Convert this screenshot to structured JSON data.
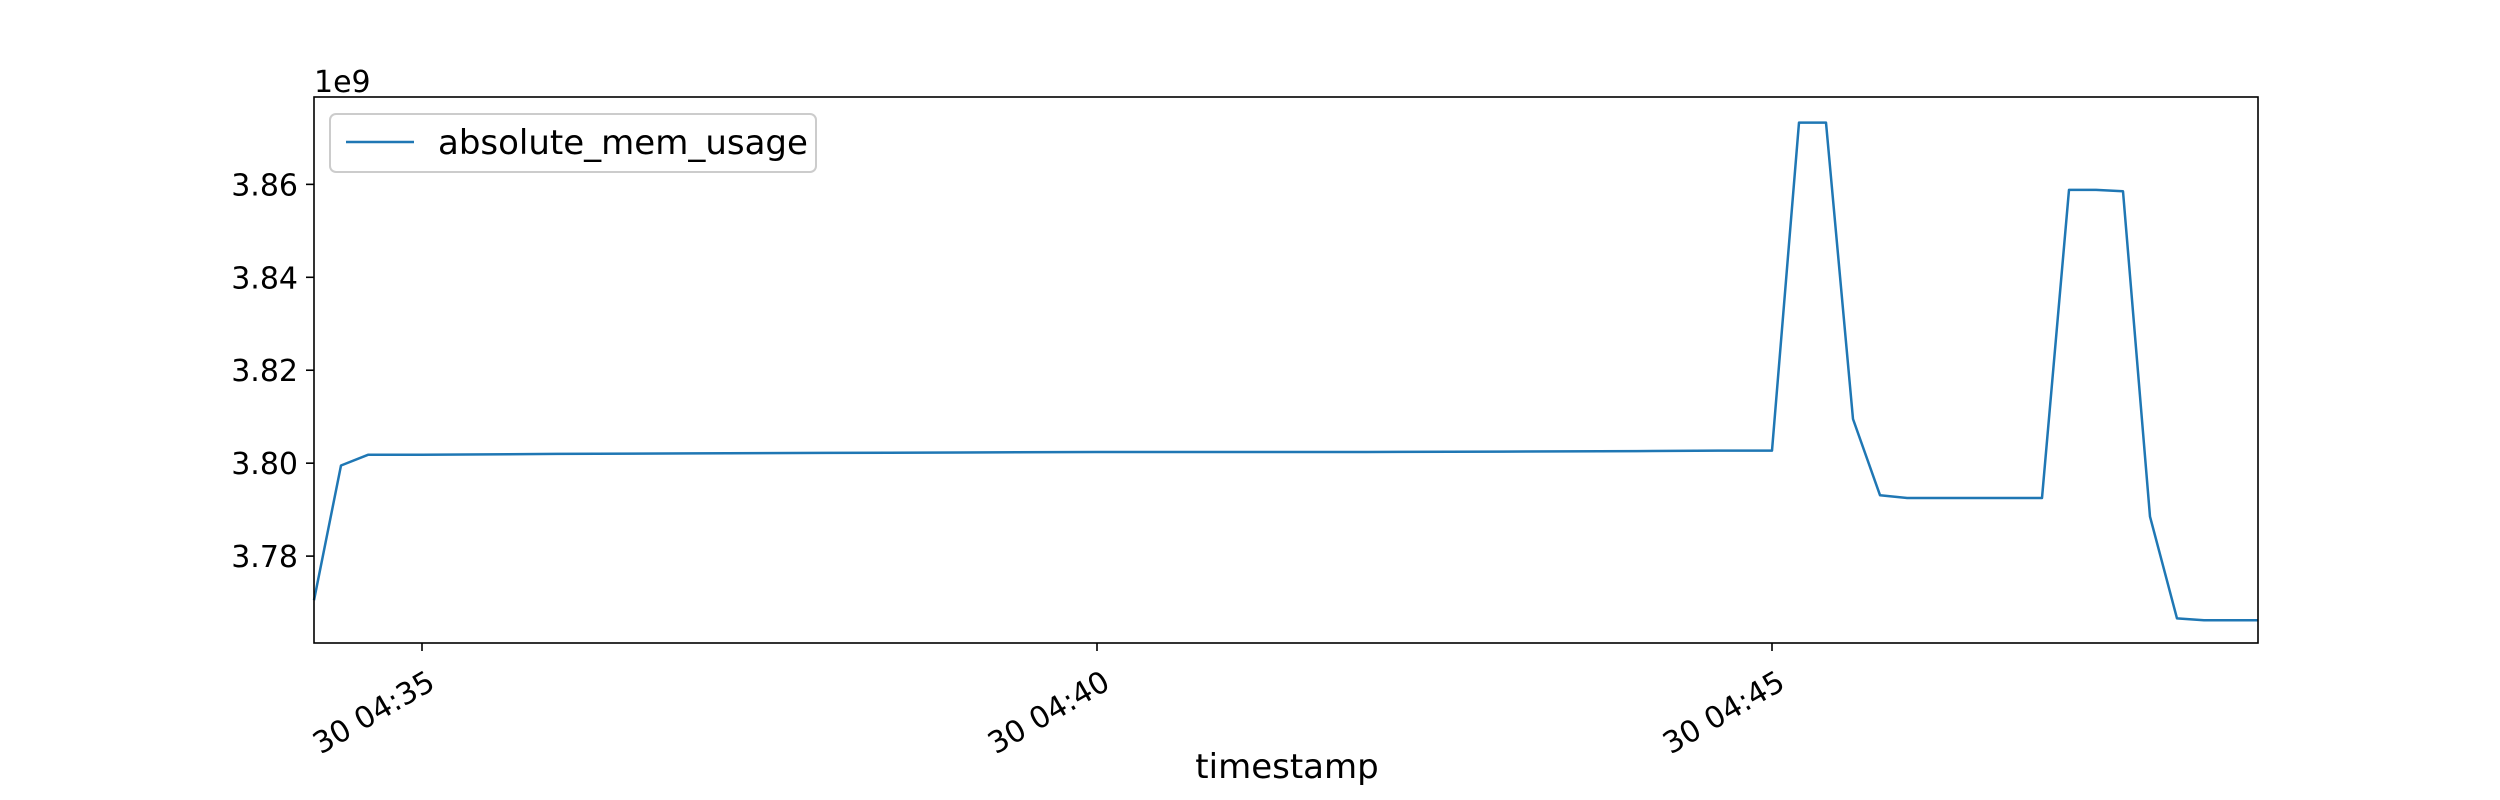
{
  "chart_data": {
    "type": "line",
    "title": "",
    "xlabel": "timestamp",
    "ylabel": "",
    "y_offset_label": "1e9",
    "x_tick_labels": [
      "30 04:35",
      "30 04:40",
      "30 04:45"
    ],
    "x_ticks": [
      "04:35:00",
      "04:40:00",
      "04:45:00"
    ],
    "xlim": [
      "04:34:12",
      "04:48:36"
    ],
    "y_tick_labels": [
      "3.78",
      "3.80",
      "3.82",
      "3.84",
      "3.86"
    ],
    "y_ticks": [
      3.78,
      3.8,
      3.82,
      3.84,
      3.86
    ],
    "ylim": [
      3.7613,
      3.8788
    ],
    "grid": false,
    "legend_position": "upper-left",
    "series": [
      {
        "name": "absolute_mem_usage",
        "color": "#1f77b4",
        "x": [
          "04:34:12",
          "04:34:24",
          "04:34:36",
          "04:34:48",
          "04:35:00",
          "04:36:00",
          "04:37:00",
          "04:38:00",
          "04:39:00",
          "04:40:00",
          "04:41:00",
          "04:42:00",
          "04:43:00",
          "04:44:00",
          "04:44:36",
          "04:44:48",
          "04:45:00",
          "04:45:12",
          "04:45:24",
          "04:45:36",
          "04:45:48",
          "04:46:00",
          "04:46:12",
          "04:46:24",
          "04:46:36",
          "04:46:48",
          "04:47:00",
          "04:47:12",
          "04:47:24",
          "04:47:36",
          "04:47:48",
          "04:48:00",
          "04:48:12",
          "04:48:24",
          "04:48:36"
        ],
        "values": [
          3.7705,
          3.7995,
          3.8018,
          3.8018,
          3.8018,
          3.802,
          3.8021,
          3.8022,
          3.8023,
          3.8024,
          3.8024,
          3.8024,
          3.8025,
          3.8026,
          3.8027,
          3.8027,
          3.8027,
          3.8733,
          3.8733,
          3.8095,
          3.7931,
          3.7925,
          3.7925,
          3.7925,
          3.7925,
          3.7925,
          3.7925,
          3.8588,
          3.8588,
          3.8585,
          3.7885,
          3.7666,
          3.7662,
          3.7662,
          3.7662
        ]
      }
    ]
  }
}
